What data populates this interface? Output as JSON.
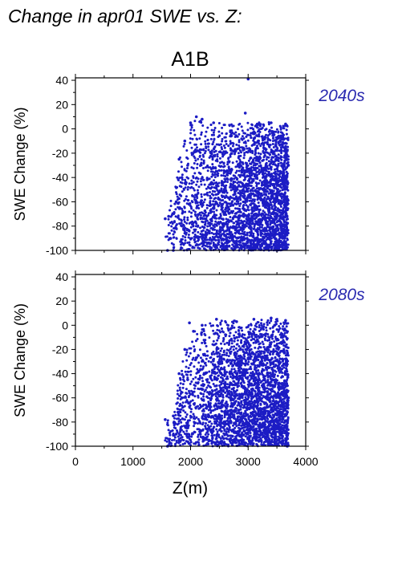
{
  "figure": {
    "title": "Change in apr01 SWE vs. Z:",
    "scenario": "A1B",
    "xlabel": "Z(m)",
    "ylabel": "SWE Change (%)"
  },
  "colors": {
    "points": "#1c1cc4",
    "period_label": "#2a2ab0",
    "axis": "#000000"
  },
  "chart_data": [
    {
      "type": "scatter",
      "period": "2040s",
      "xlabel": "Z(m)",
      "ylabel": "SWE Change (%)",
      "xlim": [
        0,
        4000
      ],
      "ylim": [
        -100,
        42
      ],
      "x_ticks": [
        0,
        1000,
        2000,
        3000,
        4000
      ],
      "y_ticks": [
        -100,
        -80,
        -60,
        -40,
        -20,
        0,
        20,
        40
      ],
      "grid": false,
      "color": "#1c1cc4",
      "point_cloud_envelope": {
        "x_range": [
          1550,
          3700
        ],
        "y_lower": -100,
        "y_upper_by_z": [
          [
            1550,
            -75
          ],
          [
            1600,
            -70
          ],
          [
            1800,
            -25
          ],
          [
            1900,
            -10
          ],
          [
            2000,
            5
          ],
          [
            2100,
            8
          ],
          [
            2500,
            6
          ],
          [
            3000,
            6
          ],
          [
            3500,
            6
          ],
          [
            3700,
            5
          ]
        ]
      },
      "points": [
        [
          1560,
          -74
        ],
        [
          1600,
          -100
        ],
        [
          1700,
          -100
        ],
        [
          1650,
          -90
        ],
        [
          1620,
          -72
        ],
        [
          1750,
          -60
        ],
        [
          1800,
          -25
        ],
        [
          1850,
          -40
        ],
        [
          1900,
          -10
        ],
        [
          1950,
          -30
        ],
        [
          2000,
          5
        ],
        [
          2020,
          3
        ],
        [
          2100,
          10
        ],
        [
          2200,
          8
        ],
        [
          2400,
          5
        ],
        [
          2950,
          13
        ],
        [
          3000,
          41
        ],
        [
          3150,
          3
        ],
        [
          3400,
          5
        ],
        [
          3650,
          4
        ],
        [
          3700,
          -30
        ],
        [
          3680,
          -84
        ],
        [
          3500,
          -100
        ]
      ]
    },
    {
      "type": "scatter",
      "period": "2080s",
      "xlabel": "Z(m)",
      "ylabel": "SWE Change (%)",
      "xlim": [
        0,
        4000
      ],
      "ylim": [
        -100,
        42
      ],
      "x_ticks": [
        0,
        1000,
        2000,
        3000,
        4000
      ],
      "y_ticks": [
        -100,
        -80,
        -60,
        -40,
        -20,
        0,
        20,
        40
      ],
      "grid": false,
      "color": "#1c1cc4",
      "point_cloud_envelope": {
        "x_range": [
          1550,
          3700
        ],
        "y_lower": -100,
        "y_upper_by_z": [
          [
            1550,
            -78
          ],
          [
            1700,
            -75
          ],
          [
            1800,
            -40
          ],
          [
            1900,
            -20
          ],
          [
            2000,
            -8
          ],
          [
            2100,
            0
          ],
          [
            2300,
            3
          ],
          [
            2500,
            5
          ],
          [
            3000,
            4
          ],
          [
            3400,
            6
          ],
          [
            3700,
            4
          ]
        ]
      },
      "points": [
        [
          1560,
          -78
        ],
        [
          1600,
          -100
        ],
        [
          1700,
          -75
        ],
        [
          1750,
          -90
        ],
        [
          1800,
          -40
        ],
        [
          1850,
          -60
        ],
        [
          1900,
          -20
        ],
        [
          1950,
          -45
        ],
        [
          1980,
          2
        ],
        [
          2050,
          -5
        ],
        [
          2200,
          0
        ],
        [
          2450,
          5
        ],
        [
          2800,
          3
        ],
        [
          3100,
          5
        ],
        [
          3400,
          6
        ],
        [
          3650,
          4
        ],
        [
          3700,
          -60
        ],
        [
          3680,
          -100
        ]
      ]
    }
  ]
}
